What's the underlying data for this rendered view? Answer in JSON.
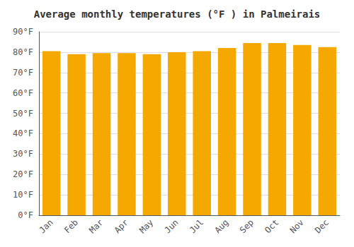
{
  "chart_data": {
    "type": "bar",
    "title": "Average monthly temperatures (°F ) in Palmeirais",
    "categories": [
      "Jan",
      "Feb",
      "Mar",
      "Apr",
      "May",
      "Jun",
      "Jul",
      "Aug",
      "Sep",
      "Oct",
      "Nov",
      "Dec"
    ],
    "values": [
      80.5,
      79.0,
      79.5,
      79.5,
      79.0,
      80.0,
      80.5,
      82.0,
      84.5,
      84.5,
      83.5,
      82.5
    ],
    "color": "#F5A800",
    "ylim": [
      0,
      90
    ],
    "yticks": [
      {
        "value": 0,
        "label": "0°F"
      },
      {
        "value": 10,
        "label": "10°F"
      },
      {
        "value": 20,
        "label": "20°F"
      },
      {
        "value": 30,
        "label": "30°F"
      },
      {
        "value": 40,
        "label": "40°F"
      },
      {
        "value": 50,
        "label": "50°F"
      },
      {
        "value": 60,
        "label": "60°F"
      },
      {
        "value": 70,
        "label": "70°F"
      },
      {
        "value": 80,
        "label": "80°F"
      },
      {
        "value": 90,
        "label": "90°F"
      }
    ],
    "grid": true
  }
}
